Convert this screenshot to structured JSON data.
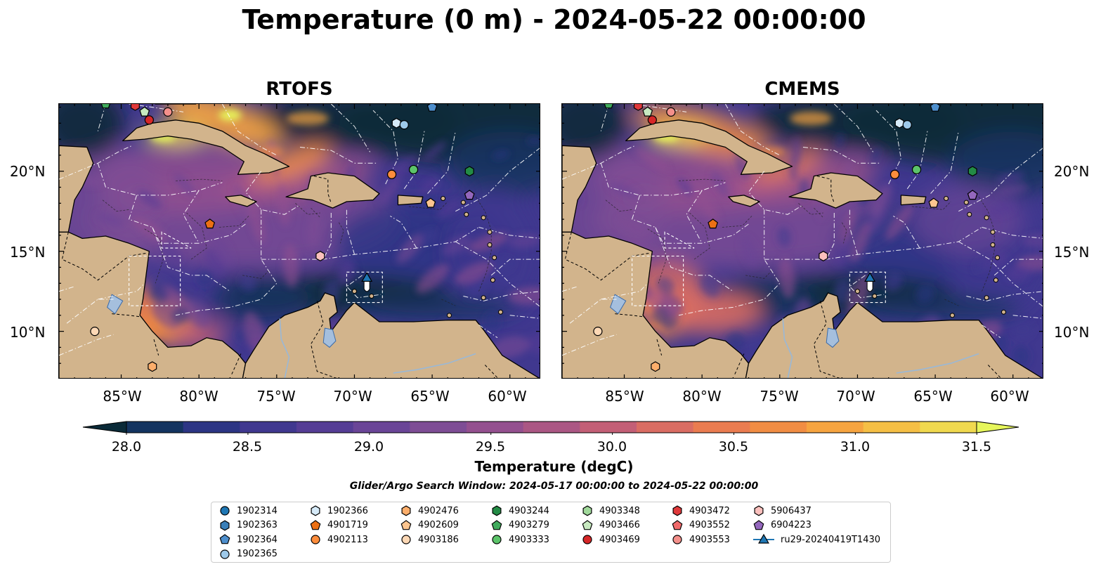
{
  "title": "Temperature (0 m) - 2024-05-22 00:00:00",
  "panels": [
    {
      "title": "RTOFS"
    },
    {
      "title": "CMEMS"
    }
  ],
  "lat_labels": [
    "20°N",
    "15°N",
    "10°N"
  ],
  "lon_labels": [
    "85°W",
    "80°W",
    "75°W",
    "70°W",
    "65°W",
    "60°W"
  ],
  "colorbar": {
    "label": "Temperature (degC)",
    "ticks": [
      "28.0",
      "28.5",
      "29.0",
      "29.5",
      "30.0",
      "30.5",
      "31.0",
      "31.5"
    ],
    "min": 28.0,
    "max": 31.5,
    "extend": "both",
    "colors": [
      "#0a2a38",
      "#143460",
      "#2c3584",
      "#40388f",
      "#553d95",
      "#6a4597",
      "#7e4d95",
      "#94508f",
      "#ab5784",
      "#c35f76",
      "#da6d63",
      "#ea7c50",
      "#f18d43",
      "#f6a440",
      "#f5bf45",
      "#f0d94f",
      "#e6f65b"
    ]
  },
  "search_window": "Glider/Argo Search Window: 2024-05-17 00:00:00 to 2024-05-22 00:00:00",
  "legend": {
    "items": [
      {
        "label": "1902314",
        "marker": "circle",
        "color": "#1f77b4"
      },
      {
        "label": "1902363",
        "marker": "hexagon",
        "color": "#3a7fb8"
      },
      {
        "label": "1902364",
        "marker": "pentagon",
        "color": "#4e8fcd"
      },
      {
        "label": "1902365",
        "marker": "circle",
        "color": "#9ec9e9"
      },
      {
        "label": "1902366",
        "marker": "hexagon",
        "color": "#d6eaf8"
      },
      {
        "label": "4901719",
        "marker": "pentagon",
        "color": "#ec7014"
      },
      {
        "label": "4902113",
        "marker": "circle",
        "color": "#fd8d3c"
      },
      {
        "label": "4902476",
        "marker": "hexagon",
        "color": "#fdae6b"
      },
      {
        "label": "4902609",
        "marker": "pentagon",
        "color": "#fdc58f"
      },
      {
        "label": "4903186",
        "marker": "circle",
        "color": "#fdd8b5"
      },
      {
        "label": "4903244",
        "marker": "hexagon",
        "color": "#238b45"
      },
      {
        "label": "4903279",
        "marker": "pentagon",
        "color": "#41ab5d"
      },
      {
        "label": "4903333",
        "marker": "circle",
        "color": "#5cc46a"
      },
      {
        "label": "4903348",
        "marker": "hexagon",
        "color": "#a1d99b"
      },
      {
        "label": "4903466",
        "marker": "pentagon",
        "color": "#c7e9c0"
      },
      {
        "label": "4903469",
        "marker": "circle",
        "color": "#d62728"
      },
      {
        "label": "4903472",
        "marker": "hexagon",
        "color": "#e0393b"
      },
      {
        "label": "4903552",
        "marker": "pentagon",
        "color": "#f06a6b"
      },
      {
        "label": "4903553",
        "marker": "circle",
        "color": "#f4908b"
      },
      {
        "label": "5906437",
        "marker": "hexagon",
        "color": "#fbc0bd"
      },
      {
        "label": "6904223",
        "marker": "pentagon",
        "color": "#9467bd"
      },
      {
        "label": "ru29-20240419T1430",
        "marker": "triangle-line",
        "color": "#1f77b4"
      }
    ]
  },
  "floats": [
    {
      "id": "4903279",
      "lon": -86.0,
      "lat": 24.2
    },
    {
      "id": "4903472",
      "lon": -84.1,
      "lat": 24.1
    },
    {
      "id": "4903466",
      "lon": -83.5,
      "lat": 23.7
    },
    {
      "id": "4903469",
      "lon": -83.2,
      "lat": 23.2
    },
    {
      "id": "4903553",
      "lon": -82.0,
      "lat": 23.7
    },
    {
      "id": "1902366",
      "lon": -67.3,
      "lat": 23.0
    },
    {
      "id": "1902365",
      "lon": -66.8,
      "lat": 22.9
    },
    {
      "id": "1902364",
      "lon": -65.0,
      "lat": 24.0
    },
    {
      "id": "4902113",
      "lon": -67.6,
      "lat": 19.8
    },
    {
      "id": "4903333",
      "lon": -66.2,
      "lat": 20.1
    },
    {
      "id": "4903244",
      "lon": -62.6,
      "lat": 20.0
    },
    {
      "id": "6904223",
      "lon": -62.6,
      "lat": 18.5
    },
    {
      "id": "4902609",
      "lon": -65.1,
      "lat": 18.0
    },
    {
      "id": "4901719",
      "lon": -79.3,
      "lat": 16.7
    },
    {
      "id": "5906437",
      "lon": -72.2,
      "lat": 14.7
    },
    {
      "id": "4903186",
      "lon": -86.7,
      "lat": 10.0
    },
    {
      "id": "4902476",
      "lon": -83.0,
      "lat": 7.8
    }
  ],
  "glider": {
    "id": "ru29-20240419T1430",
    "lon": -69.2,
    "lat": 13.3
  }
}
